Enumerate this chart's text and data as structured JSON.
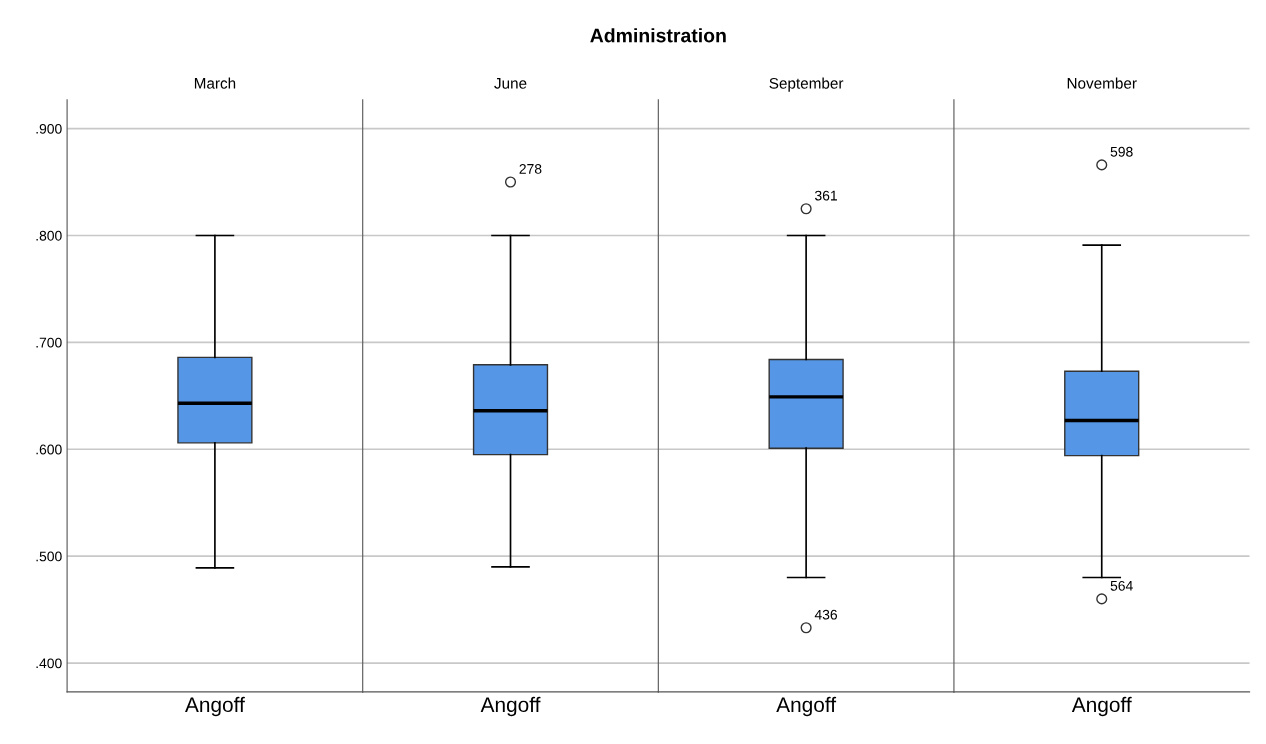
{
  "chart_data": [
    {
      "type": "box",
      "subtitle": "March",
      "annotations": [
        "Administration"
      ],
      "categories": [
        "Angoff"
      ],
      "color": "#5596e6",
      "ylim": [
        0.373,
        0.927
      ],
      "yticks": [
        {
          "value": 0.4,
          "label": ".400"
        },
        {
          "value": 0.5,
          "label": ".500"
        },
        {
          "value": 0.6,
          "label": ".600"
        },
        {
          "value": 0.7,
          "label": ".700"
        },
        {
          "value": 0.8,
          "label": ".800"
        },
        {
          "value": 0.9,
          "label": ".900"
        }
      ],
      "grid": "y",
      "boxes": [
        {
          "low": 0.489,
          "q1": 0.606,
          "median": 0.643,
          "q3": 0.686,
          "high": 0.8
        }
      ]
    },
    {
      "type": "box",
      "subtitle": "June",
      "categories": [
        "Angoff"
      ],
      "color": "#5596e6",
      "ylim": [
        0.373,
        0.927
      ],
      "yticks": [
        0.4,
        0.5,
        0.6,
        0.7,
        0.8,
        0.9
      ],
      "grid": "y",
      "tick_labels": "x",
      "boxes": [
        {
          "low": 0.49,
          "q1": 0.595,
          "median": 0.636,
          "q3": 0.679,
          "high": 0.8,
          "outliers": [
            0.85
          ]
        }
      ],
      "annotations": [
        "278"
      ]
    },
    {
      "type": "box",
      "subtitle": "September",
      "categories": [
        "Angoff"
      ],
      "color": "#5596e6",
      "ylim": [
        0.373,
        0.927
      ],
      "yticks": [
        0.4,
        0.5,
        0.6,
        0.7,
        0.8,
        0.9
      ],
      "grid": "y",
      "tick_labels": "x",
      "boxes": [
        {
          "low": 0.48,
          "q1": 0.601,
          "median": 0.649,
          "q3": 0.684,
          "high": 0.8,
          "outliers": [
            0.825,
            0.433
          ]
        }
      ],
      "annotations": [
        "361",
        "436"
      ]
    },
    {
      "type": "box",
      "subtitle": "November",
      "categories": [
        "Angoff"
      ],
      "color": "#5596e6",
      "ylim": [
        0.373,
        0.927
      ],
      "yticks": [
        0.4,
        0.5,
        0.6,
        0.7,
        0.8,
        0.9
      ],
      "grid": "y",
      "tick_labels": "x",
      "boxes": [
        {
          "low": 0.48,
          "q1": 0.594,
          "median": 0.627,
          "q3": 0.673,
          "high": 0.791,
          "outliers": [
            0.866,
            0.46
          ]
        }
      ],
      "annotations": [
        "598",
        "564"
      ]
    }
  ]
}
